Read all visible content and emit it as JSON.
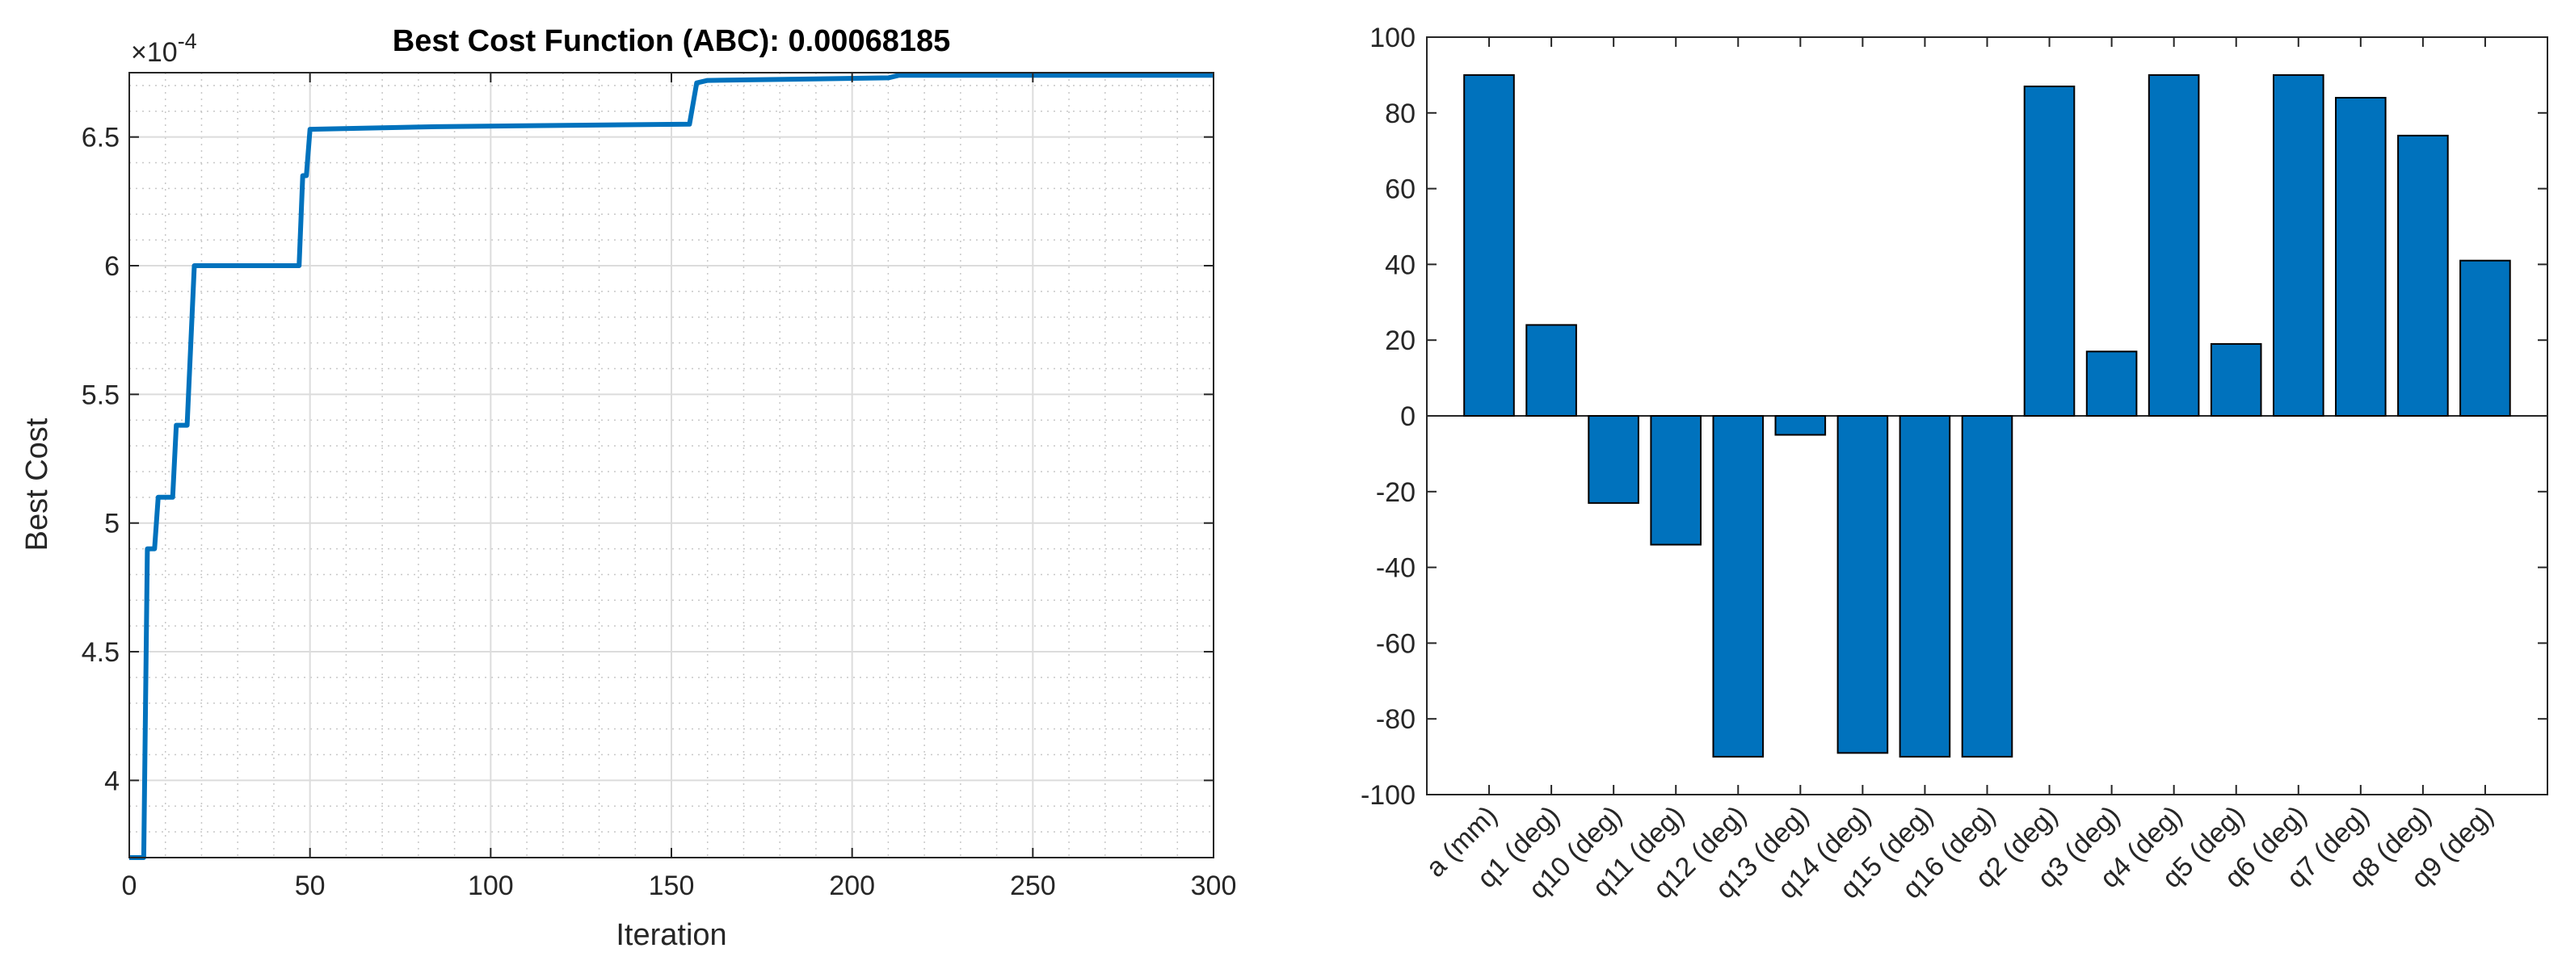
{
  "chart_data": [
    {
      "type": "line",
      "title": "Best Cost Function (ABC): 0.00068185",
      "xlabel": "Iteration",
      "ylabel": "Best Cost",
      "exponent_label": "×10",
      "exponent_power": "-4",
      "xlim": [
        0,
        300
      ],
      "ylim": [
        3.7,
        6.75
      ],
      "xticks": [
        0,
        50,
        100,
        150,
        200,
        250,
        300
      ],
      "xtick_labels": [
        "0",
        "50",
        "100",
        "150",
        "200",
        "250",
        "300"
      ],
      "yticks": [
        4,
        4.5,
        5,
        5.5,
        6,
        6.5
      ],
      "ytick_labels": [
        "4",
        "4.5",
        "5",
        "5.5",
        "6",
        "6.5"
      ],
      "grid": true,
      "minor_grid": true,
      "line_color": "#0072BD",
      "x": [
        0,
        4,
        5,
        7,
        8,
        12,
        13,
        15,
        16,
        18,
        19,
        47,
        48,
        49,
        50,
        85,
        155,
        157,
        160,
        210,
        213,
        215,
        250,
        300
      ],
      "y": [
        3.7,
        3.7,
        4.9,
        4.9,
        5.1,
        5.1,
        5.38,
        5.38,
        5.38,
        6.0,
        6.0,
        6.0,
        6.35,
        6.35,
        6.53,
        6.54,
        6.55,
        6.71,
        6.72,
        6.73,
        6.74,
        6.74,
        6.74,
        6.74
      ]
    },
    {
      "type": "bar",
      "categories": [
        "a (mm)",
        "q1 (deg)",
        "q10 (deg)",
        "q11 (deg)",
        "q12 (deg)",
        "q13 (deg)",
        "q14 (deg)",
        "q15 (deg)",
        "q16 (deg)",
        "q2 (deg)",
        "q3 (deg)",
        "q4 (deg)",
        "q5 (deg)",
        "q6 (deg)",
        "q7 (deg)",
        "q8 (deg)",
        "q9 (deg)"
      ],
      "values": [
        90,
        24,
        -23,
        -34,
        -90,
        -5,
        -89,
        -90,
        -90,
        87,
        17,
        90,
        19,
        90,
        84,
        74,
        41
      ],
      "ylim": [
        -100,
        100
      ],
      "yticks": [
        -100,
        -80,
        -60,
        -40,
        -20,
        0,
        20,
        40,
        60,
        80,
        100
      ],
      "ytick_labels": [
        "-100",
        "-80",
        "-60",
        "-40",
        "-20",
        "0",
        "20",
        "40",
        "60",
        "80",
        "100"
      ],
      "grid": false,
      "bar_color": "#0072BD",
      "edge_color": "#000000"
    }
  ]
}
